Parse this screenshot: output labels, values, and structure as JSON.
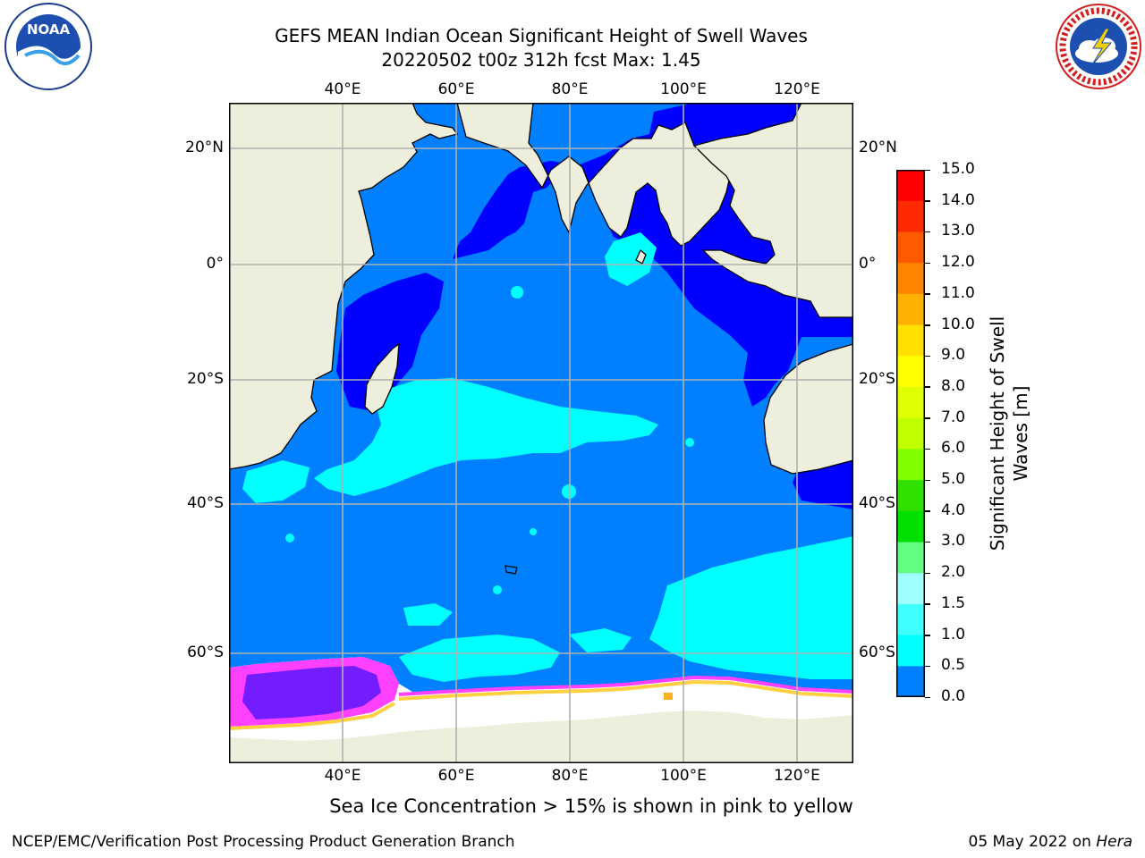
{
  "header": {
    "title_line1": "GEFS MEAN Indian Ocean Significant Height of Swell Waves",
    "title_line2": "20220502 t00z 312h fcst   Max: 1.45",
    "noaa_logo_text": "NOAA",
    "nws_logo_text": "NATIONAL WEATHER SERVICE"
  },
  "map": {
    "lon_ticks_top": [
      "40°E",
      "60°E",
      "80°E",
      "100°E",
      "120°E"
    ],
    "lon_ticks_bottom": [
      "40°E",
      "60°E",
      "80°E",
      "100°E",
      "120°E"
    ],
    "lat_ticks_left": [
      "20°N",
      "0°",
      "20°S",
      "40°S",
      "60°S"
    ],
    "lat_ticks_right": [
      "20°N",
      "0°",
      "20°S",
      "40°S",
      "60°S"
    ],
    "colors": {
      "land": "#eeeedd",
      "ocean_0_0_5": "#0000ff",
      "ocean_0_5_1_0": "#0080ff",
      "ocean_1_0_1_5": "#00ffff",
      "sea_ice": "#ffffff",
      "sea_ice_edge_pink": "#ff40ff",
      "sea_ice_edge_yellow": "#ffd040",
      "gridline": "#b0b0b0"
    }
  },
  "colorbar": {
    "label": "Significant Height of Swell Waves [m]",
    "ticks": [
      "15.0",
      "14.0",
      "13.0",
      "12.0",
      "11.0",
      "10.0",
      "9.0",
      "8.0",
      "7.0",
      "6.0",
      "5.0",
      "4.0",
      "3.0",
      "2.0",
      "1.5",
      "1.0",
      "0.5",
      "0.0"
    ],
    "colors": [
      "#ff0000",
      "#ff2a00",
      "#ff5a00",
      "#ff8400",
      "#ffb000",
      "#ffe000",
      "#ffff00",
      "#e0ff00",
      "#c0ff00",
      "#80ff00",
      "#30e000",
      "#00e000",
      "#60ff80",
      "#a0ffff",
      "#40ffff",
      "#00ffff",
      "#0080ff",
      "#0000ff"
    ]
  },
  "sea_ice_note": "Sea Ice Concentration > 15% is shown in pink to yellow",
  "footer": {
    "left": "NCEP/EMC/Verification Post Processing Product Generation Branch",
    "right_date": "05 May 2022 on ",
    "right_host": "Hera"
  }
}
